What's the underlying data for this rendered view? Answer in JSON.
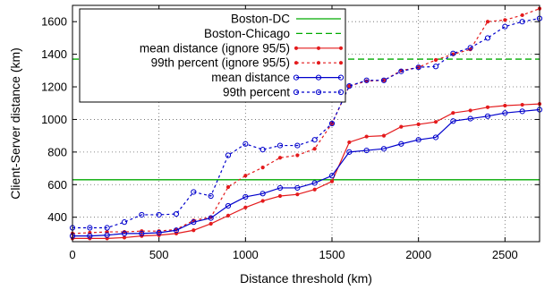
{
  "chart_data": {
    "type": "line",
    "xlabel": "Distance threshold (km)",
    "ylabel": "Client-Server distance (km)",
    "xlim": [
      0,
      2700
    ],
    "ylim": [
      250,
      1700
    ],
    "xticks": [
      0,
      500,
      1000,
      1500,
      2000,
      2500
    ],
    "yticks": [
      400,
      600,
      800,
      1000,
      1200,
      1400,
      1600
    ],
    "grid": true,
    "legend_position": "top-left",
    "reference_lines": [
      {
        "name": "Boston-DC",
        "y": 630,
        "color": "#00aa00",
        "style": "solid"
      },
      {
        "name": "Boston-Chicago",
        "y": 1370,
        "color": "#00aa00",
        "style": "dashed"
      }
    ],
    "series": [
      {
        "name": "mean distance (ignore 95/5)",
        "color": "#e41a1c",
        "style": "solid",
        "marker": "dot",
        "x": [
          0,
          100,
          200,
          300,
          400,
          500,
          600,
          700,
          800,
          900,
          1000,
          1100,
          1200,
          1300,
          1400,
          1500,
          1600,
          1700,
          1800,
          1900,
          2000,
          2100,
          2200,
          2300,
          2400,
          2500,
          2600,
          2700
        ],
        "y": [
          270,
          270,
          270,
          275,
          285,
          290,
          300,
          320,
          360,
          410,
          460,
          500,
          530,
          540,
          570,
          620,
          860,
          895,
          900,
          955,
          970,
          985,
          1040,
          1055,
          1075,
          1085,
          1090,
          1095
        ]
      },
      {
        "name": "99th percent (ignore 95/5)",
        "color": "#e41a1c",
        "style": "dotted",
        "marker": "dot",
        "x": [
          0,
          100,
          200,
          300,
          400,
          500,
          600,
          700,
          800,
          900,
          1000,
          1100,
          1200,
          1300,
          1400,
          1500,
          1600,
          1700,
          1800,
          1900,
          2000,
          2100,
          2200,
          2300,
          2400,
          2500,
          2600,
          2700
        ],
        "y": [
          300,
          305,
          310,
          310,
          315,
          315,
          325,
          380,
          400,
          585,
          655,
          705,
          765,
          780,
          820,
          975,
          1205,
          1235,
          1240,
          1300,
          1320,
          1365,
          1400,
          1430,
          1600,
          1610,
          1640,
          1680
        ]
      },
      {
        "name": "mean distance",
        "color": "#0000cc",
        "style": "solid",
        "marker": "circle",
        "x": [
          0,
          100,
          200,
          300,
          400,
          500,
          600,
          700,
          800,
          900,
          1000,
          1100,
          1200,
          1300,
          1400,
          1500,
          1600,
          1700,
          1800,
          1900,
          2000,
          2100,
          2200,
          2300,
          2400,
          2500,
          2600,
          2700
        ],
        "y": [
          285,
          285,
          290,
          300,
          300,
          305,
          320,
          370,
          395,
          470,
          525,
          545,
          580,
          580,
          610,
          655,
          800,
          810,
          820,
          850,
          875,
          890,
          990,
          1005,
          1020,
          1040,
          1050,
          1060
        ]
      },
      {
        "name": "99th percent",
        "color": "#0000cc",
        "style": "dotted",
        "marker": "circle",
        "x": [
          0,
          100,
          200,
          300,
          400,
          500,
          600,
          700,
          800,
          900,
          1000,
          1100,
          1200,
          1300,
          1400,
          1500,
          1600,
          1700,
          1800,
          1900,
          2000,
          2100,
          2200,
          2300,
          2400,
          2500,
          2600,
          2700
        ],
        "y": [
          335,
          335,
          335,
          370,
          415,
          415,
          420,
          555,
          530,
          780,
          850,
          815,
          840,
          840,
          875,
          975,
          1205,
          1240,
          1240,
          1295,
          1320,
          1325,
          1405,
          1440,
          1500,
          1570,
          1600,
          1620
        ]
      }
    ]
  }
}
